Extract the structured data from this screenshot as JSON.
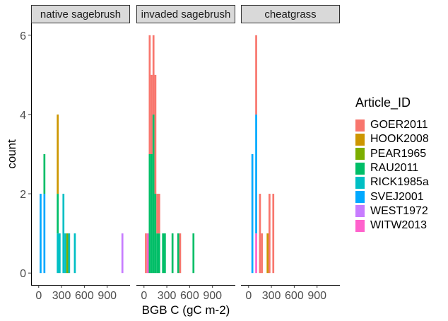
{
  "chart_data": {
    "type": "bar",
    "subtype": "faceted stacked histogram",
    "xlabel": "BGB C (gC m-2)",
    "ylabel": "count",
    "xlim": [
      -100,
      1200
    ],
    "ylim": [
      -0.3,
      6.3
    ],
    "bin_width": 25,
    "y_ticks": [
      0,
      2,
      4,
      6
    ],
    "x_ticks": [
      0,
      300,
      600,
      900
    ],
    "x_tick_labels": [
      "0",
      "300",
      "600",
      "900"
    ],
    "grid": false,
    "legend_position": "right",
    "legend_title": "Article_ID",
    "series": [
      {
        "name": "GOER2011",
        "color": "#F8766D"
      },
      {
        "name": "HOOK2008",
        "color": "#CD9600"
      },
      {
        "name": "PEAR1965",
        "color": "#7CAE00"
      },
      {
        "name": "RAU2011",
        "color": "#00BE67"
      },
      {
        "name": "RICK1985a",
        "color": "#00BFC4"
      },
      {
        "name": "SVEJ2001",
        "color": "#00A9FF"
      },
      {
        "name": "WEST1972",
        "color": "#C77CFF"
      },
      {
        "name": "WITW2013",
        "color": "#FF61CC"
      }
    ],
    "facets": [
      {
        "label": "native sagebrush",
        "bins": [
          {
            "x": 25,
            "counts": {
              "SVEJ2001": 2
            }
          },
          {
            "x": 75,
            "counts": {
              "SVEJ2001": 2,
              "RAU2011": 1
            }
          },
          {
            "x": 250,
            "counts": {
              "RICK1985a": 1,
              "RAU2011": 1,
              "HOOK2008": 2
            }
          },
          {
            "x": 275,
            "counts": {
              "RICK1985a": 1
            }
          },
          {
            "x": 325,
            "counts": {
              "RICK1985a": 2
            }
          },
          {
            "x": 350,
            "counts": {
              "RICK1985a": 1
            }
          },
          {
            "x": 375,
            "counts": {
              "PEAR1965": 1
            }
          },
          {
            "x": 400,
            "counts": {
              "RICK1985a": 1
            }
          },
          {
            "x": 475,
            "counts": {
              "RICK1985a": 1
            }
          },
          {
            "x": 1100,
            "counts": {
              "WEST1972": 1
            }
          }
        ]
      },
      {
        "label": "invaded sagebrush",
        "bins": [
          {
            "x": 25,
            "counts": {
              "GOER2011": 1
            }
          },
          {
            "x": 50,
            "counts": {
              "WITW2013": 1
            }
          },
          {
            "x": 75,
            "counts": {
              "RAU2011": 3,
              "GOER2011": 3
            }
          },
          {
            "x": 100,
            "counts": {
              "RAU2011": 3,
              "GOER2011": 2
            }
          },
          {
            "x": 125,
            "counts": {
              "RAU2011": 4,
              "GOER2011": 2
            }
          },
          {
            "x": 150,
            "counts": {
              "RAU2011": 2,
              "GOER2011": 3
            }
          },
          {
            "x": 175,
            "counts": {
              "RAU2011": 1,
              "GOER2011": 1
            }
          },
          {
            "x": 200,
            "counts": {
              "RAU2011": 1,
              "GOER2011": 1
            }
          },
          {
            "x": 250,
            "counts": {
              "RAU2011": 1
            }
          },
          {
            "x": 275,
            "counts": {
              "RAU2011": 1
            }
          },
          {
            "x": 375,
            "counts": {
              "RAU2011": 1
            }
          },
          {
            "x": 450,
            "counts": {
              "RAU2011": 1
            }
          },
          {
            "x": 475,
            "counts": {
              "GOER2011": 1
            }
          },
          {
            "x": 650,
            "counts": {
              "RAU2011": 1
            }
          }
        ]
      },
      {
        "label": "cheatgrass",
        "bins": [
          {
            "x": 50,
            "counts": {
              "SVEJ2001": 3
            }
          },
          {
            "x": 100,
            "counts": {
              "WITW2013": 1,
              "SVEJ2001": 3,
              "GOER2011": 2
            }
          },
          {
            "x": 150,
            "counts": {
              "GOER2011": 2
            }
          },
          {
            "x": 175,
            "counts": {
              "GOER2011": 1
            }
          },
          {
            "x": 250,
            "counts": {
              "HOOK2008": 1
            }
          },
          {
            "x": 275,
            "counts": {
              "GOER2011": 2
            }
          },
          {
            "x": 325,
            "counts": {
              "GOER2011": 2
            }
          }
        ]
      }
    ]
  }
}
